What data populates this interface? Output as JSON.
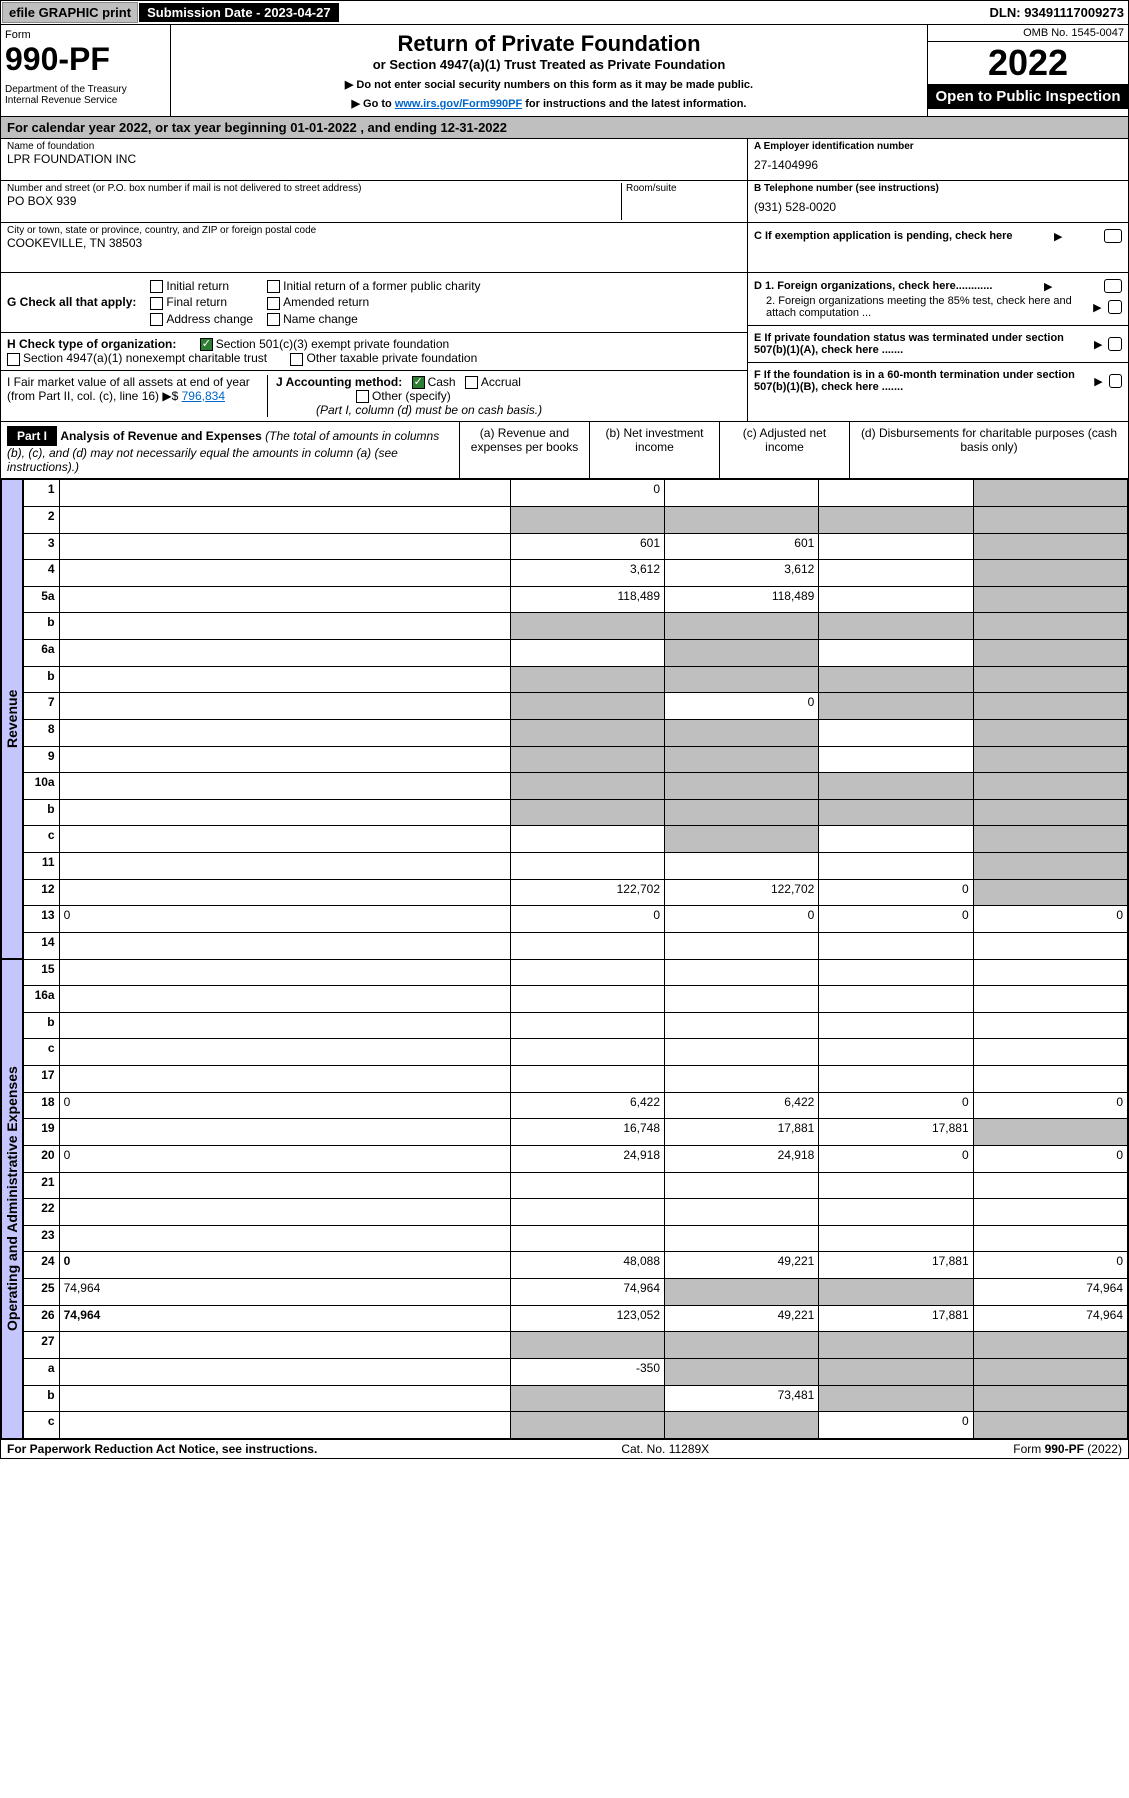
{
  "topbar": {
    "efile": "efile GRAPHIC print",
    "sub_label": "Submission Date - 2023-04-27",
    "dln": "DLN: 93491117009273"
  },
  "header": {
    "form_label": "Form",
    "form_num": "990-PF",
    "dept": "Department of the Treasury\nInternal Revenue Service",
    "title": "Return of Private Foundation",
    "subtitle": "or Section 4947(a)(1) Trust Treated as Private Foundation",
    "instr1": "▶ Do not enter social security numbers on this form as it may be made public.",
    "instr2_a": "▶ Go to ",
    "instr2_link": "www.irs.gov/Form990PF",
    "instr2_b": " for instructions and the latest information.",
    "omb": "OMB No. 1545-0047",
    "year": "2022",
    "open_public": "Open to Public Inspection"
  },
  "cy": "For calendar year 2022, or tax year beginning 01-01-2022             , and ending 12-31-2022",
  "id": {
    "name_label": "Name of foundation",
    "name": "LPR FOUNDATION INC",
    "addr_label": "Number and street (or P.O. box number if mail is not delivered to street address)",
    "addr": "PO BOX 939",
    "room_label": "Room/suite",
    "city_label": "City or town, state or province, country, and ZIP or foreign postal code",
    "city": "COOKEVILLE, TN  38503",
    "a_label": "A Employer identification number",
    "a_val": "27-1404996",
    "b_label": "B Telephone number (see instructions)",
    "b_val": "(931) 528-0020",
    "c_label": "C If exemption application is pending, check here"
  },
  "g": {
    "label": "G Check all that apply:",
    "opts": [
      "Initial return",
      "Final return",
      "Address change",
      "Initial return of a former public charity",
      "Amended return",
      "Name change"
    ]
  },
  "d": {
    "d1": "D 1. Foreign organizations, check here............",
    "d2": "2. Foreign organizations meeting the 85% test, check here and attach computation ...",
    "e": "E  If private foundation status was terminated under section 507(b)(1)(A), check here .......",
    "f": "F  If the foundation is in a 60-month termination under section 507(b)(1)(B), check here ......."
  },
  "h": {
    "label": "H Check type of organization:",
    "opt1": "Section 501(c)(3) exempt private foundation",
    "opt2": "Section 4947(a)(1) nonexempt charitable trust",
    "opt3": "Other taxable private foundation"
  },
  "i": {
    "label": "I Fair market value of all assets at end of year (from Part II, col. (c), line 16) ▶$ ",
    "val": "796,834"
  },
  "j": {
    "label": "J Accounting method:",
    "cash": "Cash",
    "accrual": "Accrual",
    "other": "Other (specify)",
    "note": "(Part I, column (d) must be on cash basis.)"
  },
  "part1": {
    "title": "Part I",
    "heading": "Analysis of Revenue and Expenses",
    "heading_note": " (The total of amounts in columns (b), (c), and (d) may not necessarily equal the amounts in column (a) (see instructions).)",
    "cols": {
      "a": "(a) Revenue and expenses per books",
      "b": "(b) Net investment income",
      "c": "(c) Adjusted net income",
      "d": "(d) Disbursements for charitable purposes (cash basis only)"
    }
  },
  "side_labels": {
    "revenue": "Revenue",
    "expenses": "Operating and Administrative Expenses"
  },
  "rows": [
    {
      "n": "1",
      "d": "",
      "a": "0",
      "b": "",
      "c": "",
      "dg": true
    },
    {
      "n": "2",
      "d": "",
      "a": "",
      "b": "",
      "c": "",
      "ag": true,
      "bg": true,
      "cg": true,
      "dg": true
    },
    {
      "n": "3",
      "d": "",
      "a": "601",
      "b": "601",
      "c": "",
      "dg": true
    },
    {
      "n": "4",
      "d": "",
      "a": "3,612",
      "b": "3,612",
      "c": "",
      "dg": true
    },
    {
      "n": "5a",
      "d": "",
      "a": "118,489",
      "b": "118,489",
      "c": "",
      "dg": true
    },
    {
      "n": "b",
      "d": "",
      "a": "",
      "b": "",
      "c": "",
      "ag": true,
      "bg": true,
      "cg": true,
      "dg": true
    },
    {
      "n": "6a",
      "d": "",
      "a": "",
      "b": "",
      "c": "",
      "bg": true,
      "dg": true
    },
    {
      "n": "b",
      "d": "",
      "a": "",
      "b": "",
      "c": "",
      "ag": true,
      "bg": true,
      "cg": true,
      "dg": true
    },
    {
      "n": "7",
      "d": "",
      "a": "",
      "b": "0",
      "c": "",
      "ag": true,
      "cg": true,
      "dg": true
    },
    {
      "n": "8",
      "d": "",
      "a": "",
      "b": "",
      "c": "",
      "ag": true,
      "bg": true,
      "dg": true
    },
    {
      "n": "9",
      "d": "",
      "a": "",
      "b": "",
      "c": "",
      "ag": true,
      "bg": true,
      "dg": true
    },
    {
      "n": "10a",
      "d": "",
      "a": "",
      "b": "",
      "c": "",
      "ag": true,
      "bg": true,
      "cg": true,
      "dg": true
    },
    {
      "n": "b",
      "d": "",
      "a": "",
      "b": "",
      "c": "",
      "ag": true,
      "bg": true,
      "cg": true,
      "dg": true
    },
    {
      "n": "c",
      "d": "",
      "a": "",
      "b": "",
      "c": "",
      "bg": true,
      "dg": true
    },
    {
      "n": "11",
      "d": "",
      "a": "",
      "b": "",
      "c": "",
      "dg": true
    },
    {
      "n": "12",
      "d": "",
      "a": "122,702",
      "b": "122,702",
      "c": "0",
      "bold": true,
      "dg": true
    },
    {
      "n": "13",
      "d": "0",
      "a": "0",
      "b": "0",
      "c": "0"
    },
    {
      "n": "14",
      "d": "",
      "a": "",
      "b": "",
      "c": ""
    },
    {
      "n": "15",
      "d": "",
      "a": "",
      "b": "",
      "c": ""
    },
    {
      "n": "16a",
      "d": "",
      "a": "",
      "b": "",
      "c": ""
    },
    {
      "n": "b",
      "d": "",
      "a": "",
      "b": "",
      "c": ""
    },
    {
      "n": "c",
      "d": "",
      "a": "",
      "b": "",
      "c": ""
    },
    {
      "n": "17",
      "d": "",
      "a": "",
      "b": "",
      "c": ""
    },
    {
      "n": "18",
      "d": "0",
      "a": "6,422",
      "b": "6,422",
      "c": "0"
    },
    {
      "n": "19",
      "d": "",
      "a": "16,748",
      "b": "17,881",
      "c": "17,881",
      "dg": true
    },
    {
      "n": "20",
      "d": "0",
      "a": "24,918",
      "b": "24,918",
      "c": "0"
    },
    {
      "n": "21",
      "d": "",
      "a": "",
      "b": "",
      "c": ""
    },
    {
      "n": "22",
      "d": "",
      "a": "",
      "b": "",
      "c": ""
    },
    {
      "n": "23",
      "d": "",
      "a": "",
      "b": "",
      "c": ""
    },
    {
      "n": "24",
      "d": "0",
      "a": "48,088",
      "b": "49,221",
      "c": "17,881",
      "bold": true
    },
    {
      "n": "25",
      "d": "74,964",
      "a": "74,964",
      "b": "",
      "c": "",
      "bg": true,
      "cg": true
    },
    {
      "n": "26",
      "d": "74,964",
      "a": "123,052",
      "b": "49,221",
      "c": "17,881",
      "bold": true
    },
    {
      "n": "27",
      "d": "",
      "a": "",
      "b": "",
      "c": "",
      "ag": true,
      "bg": true,
      "cg": true,
      "dg": true
    },
    {
      "n": "a",
      "d": "",
      "a": "-350",
      "b": "",
      "c": "",
      "bold": true,
      "bg": true,
      "cg": true,
      "dg": true
    },
    {
      "n": "b",
      "d": "",
      "a": "",
      "b": "73,481",
      "c": "",
      "bold": true,
      "ag": true,
      "cg": true,
      "dg": true
    },
    {
      "n": "c",
      "d": "",
      "a": "",
      "b": "",
      "c": "0",
      "bold": true,
      "ag": true,
      "bg": true,
      "dg": true
    }
  ],
  "footer": {
    "left": "For Paperwork Reduction Act Notice, see instructions.",
    "mid": "Cat. No. 11289X",
    "right": "Form 990-PF (2022)"
  }
}
